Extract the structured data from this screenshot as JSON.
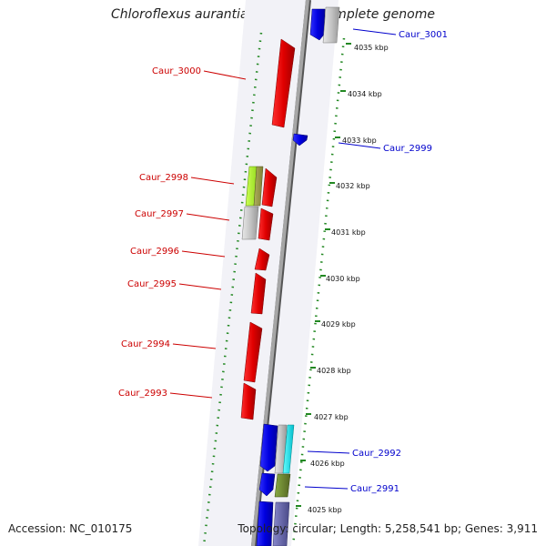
{
  "title": "Chloroflexus aurantiacus J-10-fl, complete genome",
  "footer": {
    "accession": "Accession: NC_010175",
    "summary": "Topology: circular; Length: 5,258,541 bp; Genes: 3,911"
  },
  "colors": {
    "label_left": "#cc0000",
    "label_right": "#0000cc",
    "tick": "#228822",
    "backbone": "#8a8a8a"
  },
  "scale_ticks": [
    "4035 kbp",
    "4034 kbp",
    "4033 kbp",
    "4032 kbp",
    "4031 kbp",
    "4030 kbp",
    "4029 kbp",
    "4028 kbp",
    "4027 kbp",
    "4026 kbp",
    "4025 kbp"
  ],
  "gene_labels_left": [
    "Caur_3000",
    "Caur_2998",
    "Caur_2997",
    "Caur_2996",
    "Caur_2995",
    "Caur_2994",
    "Caur_2993"
  ],
  "gene_labels_right": [
    "Caur_3001",
    "Caur_2999",
    "Caur_2992",
    "Caur_2991"
  ]
}
